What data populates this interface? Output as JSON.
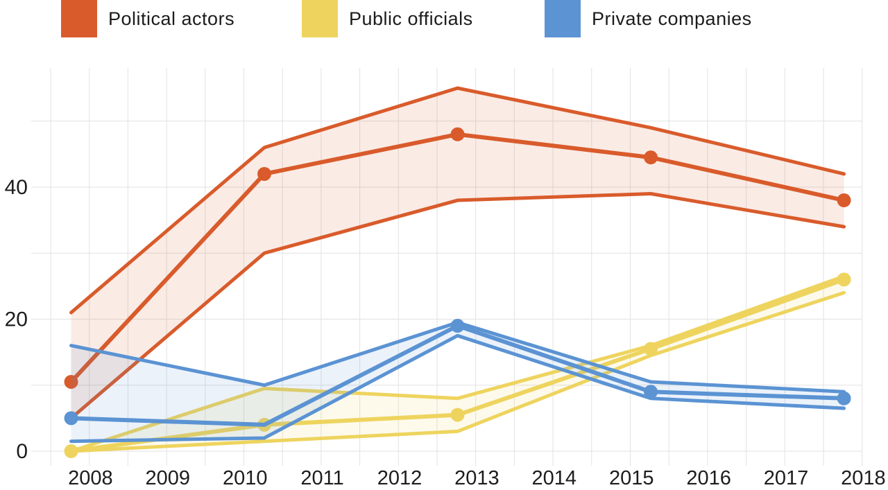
{
  "page": {
    "background": "#ffffff"
  },
  "legend": {
    "position": "top",
    "items": [
      {
        "label": "Political actors",
        "color": "#d95b2b"
      },
      {
        "label": "Public officials",
        "color": "#eed45e"
      },
      {
        "label": "Private companies",
        "color": "#5b93d3"
      }
    ]
  },
  "chart_data": {
    "type": "line",
    "title": "",
    "xlabel": "",
    "ylabel": "",
    "grid": true,
    "x": [
      2007.75,
      2010.25,
      2012.75,
      2015.25,
      2017.75
    ],
    "series": [
      {
        "name": "Political actors",
        "color": "#d95b2b",
        "values": [
          10.5,
          42,
          48,
          44.5,
          38
        ],
        "band_upper": [
          21,
          46,
          55,
          49,
          42
        ],
        "band_lower": [
          5,
          30,
          38,
          39,
          34
        ],
        "dots": [
          true,
          true,
          true,
          true,
          true
        ]
      },
      {
        "name": "Public officials",
        "color": "#eed45e",
        "values": [
          0,
          4,
          5.5,
          15.5,
          26
        ],
        "band_upper": [
          0,
          9.5,
          8,
          16,
          26.5
        ],
        "band_lower": [
          0,
          1.5,
          3,
          14.5,
          24
        ],
        "dots": [
          true,
          true,
          true,
          true,
          true
        ]
      },
      {
        "name": "Private companies",
        "color": "#5b93d3",
        "values": [
          5,
          4,
          19,
          9,
          8
        ],
        "band_upper": [
          16,
          10,
          19.5,
          10.5,
          9
        ],
        "band_lower": [
          1.5,
          2,
          17.5,
          8,
          6.5
        ],
        "dots": [
          true,
          false,
          true,
          true,
          true
        ]
      }
    ],
    "xticklabels": [
      "2008",
      "2009",
      "2010",
      "2011",
      "2012",
      "2013",
      "2014",
      "2015",
      "2016",
      "2017",
      "2018"
    ],
    "xticks": [
      2008,
      2009,
      2010,
      2011,
      2012,
      2013,
      2014,
      2015,
      2016,
      2017,
      2018
    ],
    "yticks": [
      0,
      20,
      40
    ],
    "ygridlines": [
      0,
      10,
      20,
      30,
      40,
      50
    ],
    "ylim": [
      0,
      58
    ],
    "xlim": [
      2007.45,
      2018.2
    ],
    "band_fill_opacity": 0.12,
    "gridline_color": "#e2e2e2",
    "axis_text_color": "#1c1c1c"
  }
}
